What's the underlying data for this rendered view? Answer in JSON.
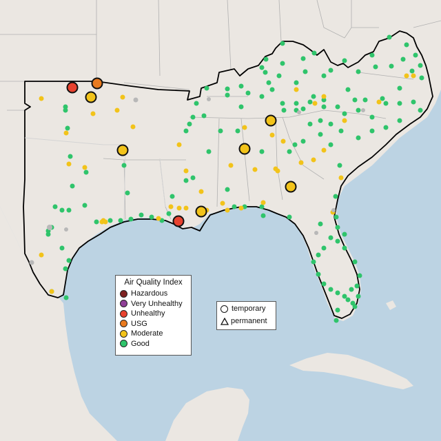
{
  "legend": {
    "title": "Air Quality Index",
    "categories": [
      {
        "label": "Hazardous",
        "color": "#7e2121"
      },
      {
        "label": "Very Unhealthy",
        "color": "#8f3f97"
      },
      {
        "label": "Unhealthy",
        "color": "#e8422f"
      },
      {
        "label": "USG",
        "color": "#e97a1f"
      },
      {
        "label": "Moderate",
        "color": "#f2c31a"
      },
      {
        "label": "Good",
        "color": "#2fc46b"
      }
    ]
  },
  "type_legend": {
    "temporary": "temporary",
    "permanent": "permanent"
  },
  "colors": {
    "water": "#bcd3e3",
    "land": "#ebe7e2",
    "border": "#000000",
    "state_line": "#aaaaaa"
  },
  "monitors_temporary_large": [
    {
      "aqi": "Unhealthy"
    },
    {
      "aqi": "USG"
    },
    {
      "aqi": "Moderate"
    },
    {
      "aqi": "Moderate"
    },
    {
      "aqi": "Moderate"
    },
    {
      "aqi": "Moderate"
    },
    {
      "aqi": "Moderate"
    },
    {
      "aqi": "Moderate"
    },
    {
      "aqi": "Unhealthy"
    }
  ]
}
